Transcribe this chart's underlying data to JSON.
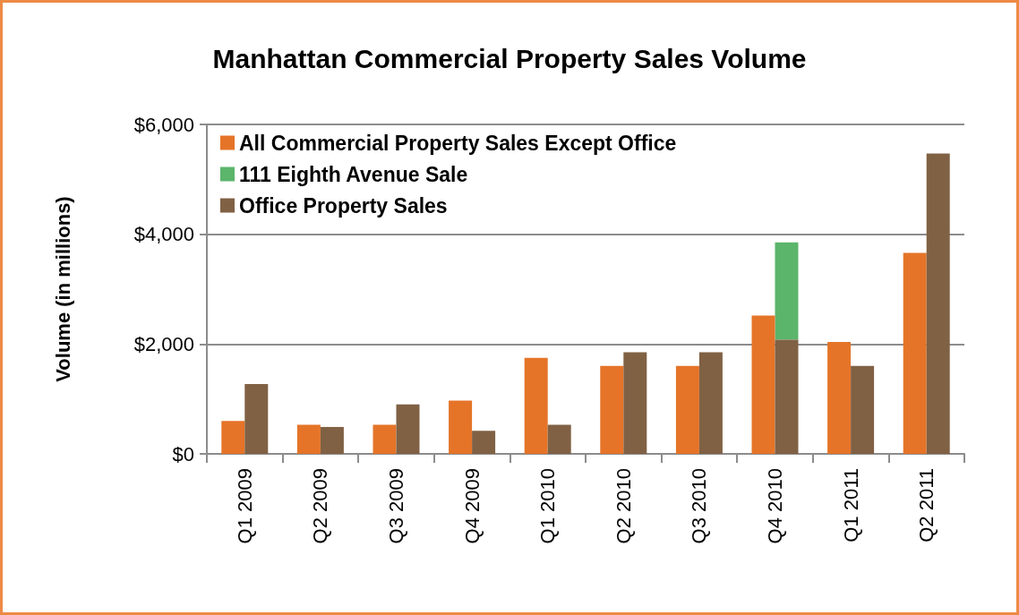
{
  "chart_data": {
    "type": "bar",
    "title": "Manhattan Commercial Property Sales Volume",
    "ylabel": "Volume (in millions)",
    "categories": [
      "Q1 2009",
      "Q2 2009",
      "Q3 2009",
      "Q4 2009",
      "Q1 2010",
      "Q2 2010",
      "Q3 2010",
      "Q4 2010",
      "Q1 2011",
      "Q2 2011"
    ],
    "series": [
      {
        "name": "All Commercial Property Sales Except Office",
        "color": "#e57428",
        "values": [
          600,
          530,
          530,
          970,
          1750,
          1600,
          1600,
          2520,
          2040,
          3660
        ]
      },
      {
        "name": "Office Property Sales",
        "color": "#806144",
        "values": [
          1270,
          490,
          900,
          420,
          530,
          1850,
          1850,
          2080,
          1600,
          5470
        ]
      },
      {
        "name": "111 Eighth Avenue Sale",
        "color": "#5bb56a",
        "values": [
          null,
          null,
          null,
          null,
          null,
          null,
          null,
          1770,
          null,
          null
        ],
        "base": [
          null,
          null,
          null,
          null,
          null,
          null,
          null,
          2080,
          null,
          null
        ]
      }
    ],
    "ylim": [
      0,
      6000
    ],
    "yticks": [
      {
        "value": 0,
        "label": "$0"
      },
      {
        "value": 2000,
        "label": "$2,000"
      },
      {
        "value": 4000,
        "label": "$4,000"
      },
      {
        "value": 6000,
        "label": "$6,000"
      }
    ],
    "grid": "y",
    "legend": "top left"
  }
}
